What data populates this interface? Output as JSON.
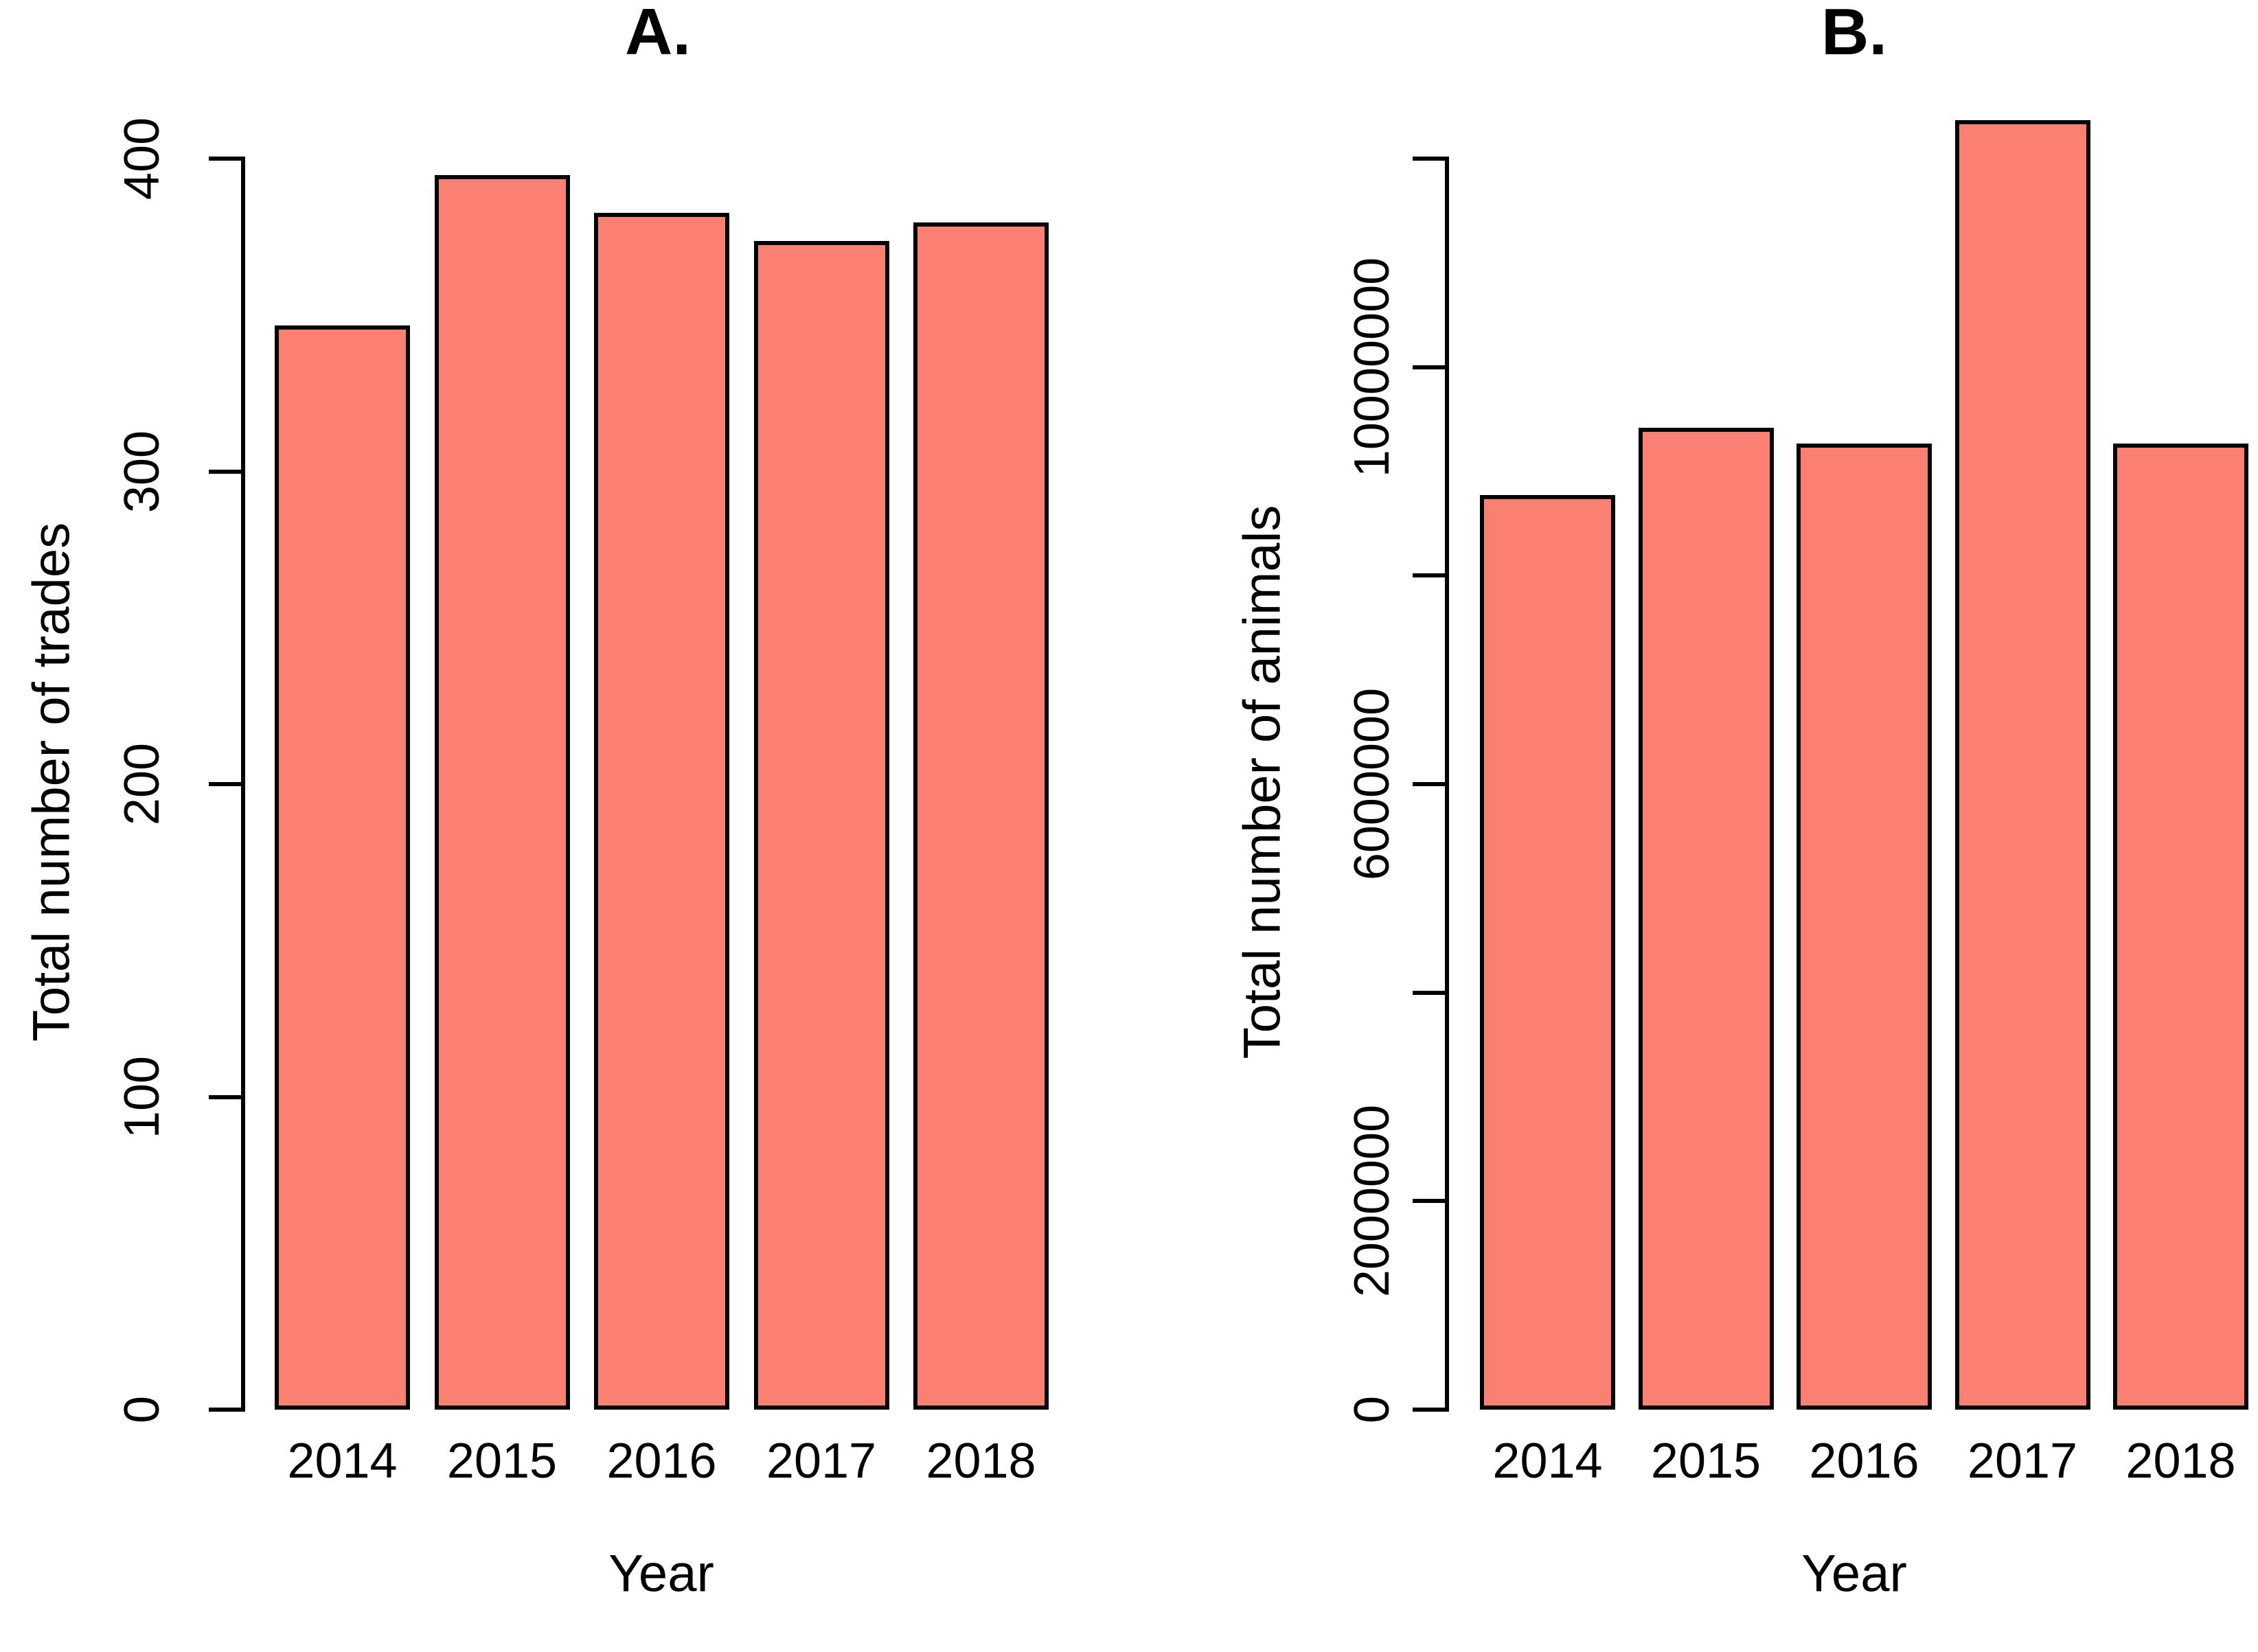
{
  "page": {
    "background": "#FFFFFF",
    "bar_fill": "#FA8072",
    "bar_border": "#000000"
  },
  "chart_data": [
    {
      "type": "bar",
      "title": "A.",
      "xlabel": "Year",
      "ylabel": "Total number of trades",
      "categories": [
        "2014",
        "2015",
        "2016",
        "2017",
        "2018"
      ],
      "values": [
        346,
        394,
        382,
        373,
        379
      ],
      "ylim": [
        0,
        400
      ],
      "grid": false,
      "legend": "none",
      "yticks": [
        {
          "value": 0,
          "label": "0"
        },
        {
          "value": 100,
          "label": "100"
        },
        {
          "value": 200,
          "label": "200"
        },
        {
          "value": 300,
          "label": "300"
        },
        {
          "value": 400,
          "label": "400"
        }
      ]
    },
    {
      "type": "bar",
      "title": "B.",
      "xlabel": "Year",
      "ylabel": "Total number of animals",
      "categories": [
        "2014",
        "2015",
        "2016",
        "2017",
        "2018"
      ],
      "values": [
        8750000,
        9400000,
        9250000,
        12350000,
        9250000
      ],
      "ylim": [
        0,
        12000000
      ],
      "grid": false,
      "legend": "none",
      "yticks": [
        {
          "value": 0,
          "label": "0"
        },
        {
          "value": 2000000,
          "label": "2000000"
        },
        {
          "value": 4000000,
          "label": ""
        },
        {
          "value": 6000000,
          "label": "6000000"
        },
        {
          "value": 8000000,
          "label": ""
        },
        {
          "value": 10000000,
          "label": "10000000"
        },
        {
          "value": 12000000,
          "label": ""
        }
      ]
    }
  ]
}
